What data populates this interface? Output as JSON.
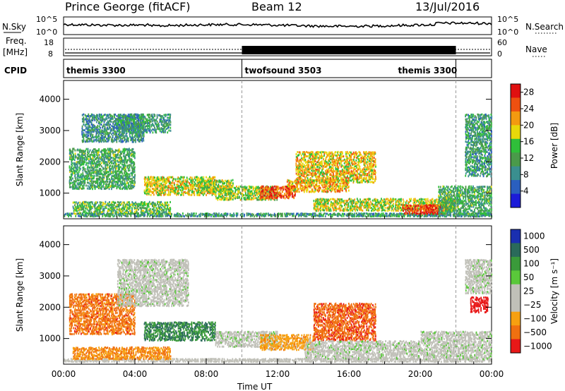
{
  "header": {
    "station": "Prince George (fitACF)",
    "beam": "Beam 12",
    "date": "13/Jul/2016"
  },
  "strip_labels": {
    "nsky": "N.Sky",
    "nsearch": "N.Search",
    "freq_line1": "Freq.",
    "freq_line2": "[MHz]",
    "nave": "Nave",
    "cpid": "CPID"
  },
  "strip_ticks": {
    "noise_left": [
      "10^5",
      "10^0"
    ],
    "noise_right": [
      "10^5",
      "10^0"
    ],
    "freq_left": [
      "18",
      "8"
    ],
    "freq_right": [
      "60",
      "0"
    ]
  },
  "cpid_segments": [
    {
      "name": "themis 3300",
      "start_hour": 0,
      "end_hour": 10
    },
    {
      "name": "twofsound 3503",
      "start_hour": 10,
      "end_hour": 22
    },
    {
      "name": "themis 3300",
      "start_hour": 22,
      "end_hour": 24
    }
  ],
  "chart_data": [
    {
      "type": "heatmap",
      "name": "power",
      "ylabel": "Slant Range [km]",
      "xlabel": "",
      "x_ticks": [
        "00:00",
        "04:00",
        "08:00",
        "12:00",
        "16:00",
        "20:00",
        "00:00"
      ],
      "xlim_hours": [
        0,
        24
      ],
      "y_ticks": [
        1000,
        2000,
        3000,
        4000
      ],
      "ylim": [
        180,
        4600
      ],
      "colorbar": {
        "label": "Power [dB]",
        "ticks": [
          4,
          8,
          12,
          16,
          20,
          24,
          28
        ],
        "range": [
          0,
          30
        ],
        "colors": [
          "#1c1cd8",
          "#2a5fbf",
          "#3a8f8f",
          "#4a9a4a",
          "#2fbf3a",
          "#e8d80a",
          "#f39a10",
          "#ee5010",
          "#e01010"
        ]
      },
      "mode_boundaries_hours": [
        10,
        22
      ],
      "echo_regions": [
        {
          "h0": 0.0,
          "h1": 24.0,
          "r0": 220,
          "r1": 330,
          "level": 0.35
        },
        {
          "h0": 0.5,
          "h1": 6.0,
          "r0": 300,
          "r1": 700,
          "level": 0.45
        },
        {
          "h0": 0.3,
          "h1": 4.0,
          "r0": 1100,
          "r1": 2400,
          "level": 0.4
        },
        {
          "h0": 1.0,
          "h1": 4.5,
          "r0": 2600,
          "r1": 3500,
          "level": 0.3
        },
        {
          "h0": 3.0,
          "h1": 6.0,
          "r0": 2900,
          "r1": 3500,
          "level": 0.35
        },
        {
          "h0": 4.5,
          "h1": 8.5,
          "r0": 900,
          "r1": 1500,
          "level": 0.62
        },
        {
          "h0": 7.5,
          "h1": 9.5,
          "r0": 1000,
          "r1": 1400,
          "level": 0.55
        },
        {
          "h0": 8.5,
          "h1": 12.0,
          "r0": 750,
          "r1": 1200,
          "level": 0.55
        },
        {
          "h0": 11.0,
          "h1": 13.0,
          "r0": 800,
          "r1": 1200,
          "level": 0.85
        },
        {
          "h0": 12.5,
          "h1": 16.0,
          "r0": 1000,
          "r1": 1400,
          "level": 0.7
        },
        {
          "h0": 13.0,
          "h1": 17.5,
          "r0": 1300,
          "r1": 2300,
          "level": 0.65
        },
        {
          "h0": 14.0,
          "h1": 22.0,
          "r0": 400,
          "r1": 800,
          "level": 0.6
        },
        {
          "h0": 19.0,
          "h1": 21.5,
          "r0": 300,
          "r1": 600,
          "level": 0.9
        },
        {
          "h0": 21.0,
          "h1": 24.0,
          "r0": 300,
          "r1": 1200,
          "level": 0.4
        },
        {
          "h0": 22.5,
          "h1": 24.0,
          "r0": 1500,
          "r1": 3500,
          "level": 0.35
        }
      ]
    },
    {
      "type": "heatmap",
      "name": "velocity",
      "ylabel": "Slant Range [km]",
      "xlabel": "Time UT",
      "x_ticks": [
        "00:00",
        "04:00",
        "08:00",
        "12:00",
        "16:00",
        "20:00",
        "00:00"
      ],
      "xlim_hours": [
        0,
        24
      ],
      "y_ticks": [
        1000,
        2000,
        3000,
        4000
      ],
      "ylim": [
        180,
        4600
      ],
      "colorbar": {
        "label": "Velocity [m s⁻¹]",
        "ticks": [
          "1000",
          "500",
          "100",
          "50",
          "25",
          "−25",
          "−100",
          "−500",
          "−1000"
        ],
        "colors": [
          "#1a2fb0",
          "#2a6a5a",
          "#3a9a3a",
          "#5ac83a",
          "#c0c0b8",
          "#c0c0b8",
          "#f7a010",
          "#f07010",
          "#e81818"
        ]
      },
      "mode_boundaries_hours": [
        10,
        22
      ],
      "echo_regions": [
        {
          "h0": 0.0,
          "h1": 24.0,
          "r0": 220,
          "r1": 330,
          "level": -0.05
        },
        {
          "h0": 0.3,
          "h1": 4.0,
          "r0": 1100,
          "r1": 2400,
          "level": -0.65
        },
        {
          "h0": 0.5,
          "h1": 6.0,
          "r0": 300,
          "r1": 700,
          "level": -0.55
        },
        {
          "h0": 3.0,
          "h1": 7.0,
          "r0": 2000,
          "r1": 3500,
          "level": 0.0
        },
        {
          "h0": 4.5,
          "h1": 8.5,
          "r0": 900,
          "r1": 1500,
          "level": 0.55
        },
        {
          "h0": 8.5,
          "h1": 12.0,
          "r0": 700,
          "r1": 1200,
          "level": 0.0
        },
        {
          "h0": 11.0,
          "h1": 14.0,
          "r0": 600,
          "r1": 1100,
          "level": -0.45
        },
        {
          "h0": 14.0,
          "h1": 17.5,
          "r0": 900,
          "r1": 2100,
          "level": -0.7
        },
        {
          "h0": 13.5,
          "h1": 20.0,
          "r0": 300,
          "r1": 900,
          "level": 0.0
        },
        {
          "h0": 20.0,
          "h1": 24.0,
          "r0": 300,
          "r1": 1200,
          "level": 0.0
        },
        {
          "h0": 22.8,
          "h1": 23.8,
          "r0": 1800,
          "r1": 2300,
          "level": -0.95
        },
        {
          "h0": 22.5,
          "h1": 24.0,
          "r0": 2400,
          "r1": 3500,
          "level": 0.0
        }
      ]
    }
  ]
}
